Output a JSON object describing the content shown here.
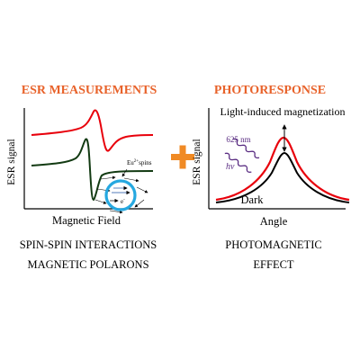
{
  "left_panel": {
    "heading": "ESR MEASUREMENTS",
    "y_axis_label": "ESR signal",
    "x_axis_label": "Magnetic Field",
    "inset_label": "Eu",
    "inset_label_sup": "2+",
    "inset_label_suffix": "spins",
    "electron_label": "e",
    "electron_sup": "-",
    "caption_line1": "SPIN-SPIN INTERACTIONS",
    "caption_line2": "MAGNETIC POLARONS"
  },
  "right_panel": {
    "heading": "PHOTORESPONSE",
    "y_axis_label": "ESR signal",
    "x_axis_label": "Angle",
    "top_annotation": "Light-induced magnetization",
    "wavelength_label": "625 nm",
    "photon_label": "hv",
    "dark_label": "Dark",
    "caption_line1": "PHOTOMAGNETIC",
    "caption_line2": "EFFECT"
  },
  "colors": {
    "heading": "#e8622a",
    "plus": "#f08a24",
    "red_curve": "#e8000b",
    "dark_curve": "#123a12",
    "black_curve": "#000000",
    "polaron": "#26a8e0",
    "wave": "#5a2d82",
    "text": "#000000"
  }
}
